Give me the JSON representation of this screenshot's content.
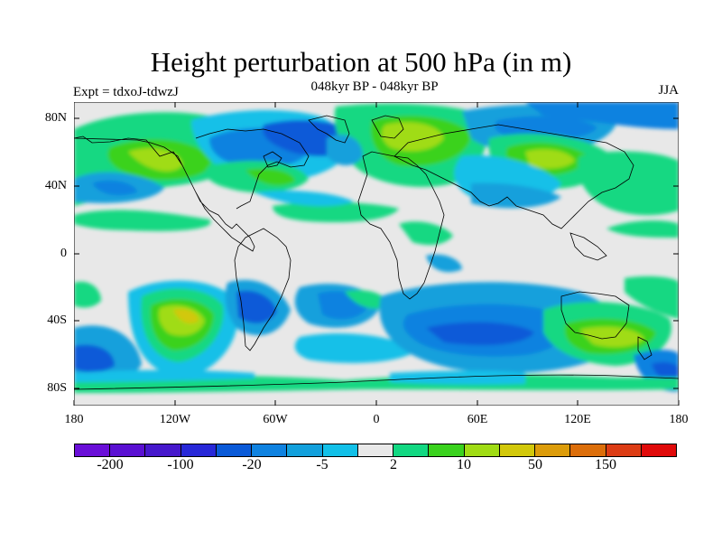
{
  "header": {
    "title": "Height perturbation at 500 hPa (in m)",
    "subtitle": "048kyr BP - 048kyr BP",
    "experiment": "Expt = tdxoJ-tdwzJ",
    "season": "JJA"
  },
  "axes": {
    "lat_labels": [
      "80N",
      "40N",
      "0",
      "40S",
      "80S"
    ],
    "lon_labels": [
      "180",
      "120W",
      "60W",
      "0",
      "60E",
      "120E",
      "180"
    ]
  },
  "colorbar": {
    "colors": [
      "#6a0fd8",
      "#5a10d2",
      "#4618cc",
      "#2828d8",
      "#0a5ad8",
      "#0f82e0",
      "#12a0dc",
      "#12c0e8",
      "#e8e8e8",
      "#12d882",
      "#3ad21e",
      "#a0dc14",
      "#d2c80a",
      "#dc9c0a",
      "#dc6e0a",
      "#dc3c14",
      "#e00a0a"
    ],
    "labels": [
      "-200",
      "-100",
      "-20",
      "-5",
      "2",
      "10",
      "50",
      "150"
    ]
  },
  "map": {
    "background_color": "#e8e8e8"
  }
}
